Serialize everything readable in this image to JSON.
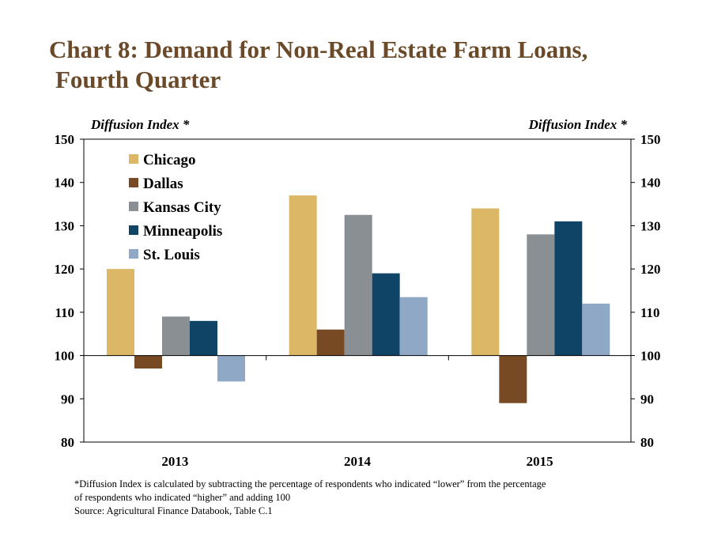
{
  "title": {
    "line1": "Chart 8: Demand for Non-Real Estate Farm Loans,",
    "line2": "Fourth Quarter"
  },
  "footnote": {
    "line1": "*Diffusion Index is calculated by subtracting the percentage of respondents who indicated “lower” from the percentage",
    "line2": "of respondents who indicated “higher” and adding 100",
    "source": "Source: Agricultural Finance Databook, Table C.1"
  },
  "chart_data": {
    "type": "bar",
    "title": "Chart 8: Demand for Non-Real Estate Farm Loans, Fourth Quarter",
    "ylabel_left": "Diffusion Index *",
    "ylabel_right": "Diffusion Index *",
    "categories": [
      "2013",
      "2014",
      "2015"
    ],
    "ylim": [
      80,
      150
    ],
    "yticks": [
      80,
      90,
      100,
      110,
      120,
      130,
      140,
      150
    ],
    "baseline": 100,
    "legend_position": "top-left",
    "grid": false,
    "series": [
      {
        "name": "Chicago",
        "color": "#dbb766",
        "values": [
          120,
          137,
          134
        ]
      },
      {
        "name": "Dallas",
        "color": "#784a23",
        "values": [
          97,
          106,
          89
        ]
      },
      {
        "name": "Kansas City",
        "color": "#8a8f93",
        "values": [
          109,
          132.5,
          128
        ]
      },
      {
        "name": "Minneapolis",
        "color": "#0f4467",
        "values": [
          108,
          119,
          131
        ]
      },
      {
        "name": "St. Louis",
        "color": "#8fa8c5",
        "values": [
          94,
          113.5,
          112
        ]
      }
    ]
  }
}
